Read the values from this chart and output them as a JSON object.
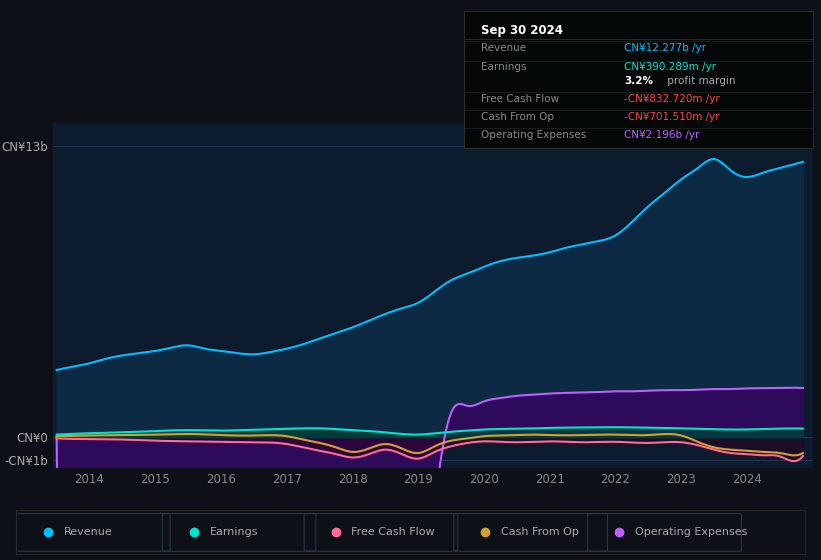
{
  "bg_color": "#0d1117",
  "plot_bg_color": "#0d1b2e",
  "grid_color": "#253550",
  "ylabel_top": "CN¥13b",
  "ylabel_zero": "CN¥0",
  "ylabel_neg": "-CN¥1b",
  "xticks": [
    2014,
    2015,
    2016,
    2017,
    2018,
    2019,
    2020,
    2021,
    2022,
    2023,
    2024
  ],
  "xlim": [
    2013.45,
    2025.0
  ],
  "ylim": [
    -1.35,
    14.0
  ],
  "ytick_positions": [
    13.0,
    0.0,
    -1.0
  ],
  "legend": [
    {
      "label": "Revenue",
      "color": "#00bfff"
    },
    {
      "label": "Earnings",
      "color": "#00e5cc"
    },
    {
      "label": "Free Cash Flow",
      "color": "#ff6b9d"
    },
    {
      "label": "Cash From Op",
      "color": "#d4a030"
    },
    {
      "label": "Operating Expenses",
      "color": "#bf5fff"
    }
  ],
  "info_box": {
    "date": "Sep 30 2024",
    "rows": [
      {
        "label": "Revenue",
        "value": "CN¥12.277b /yr",
        "value_color": "#00bfff"
      },
      {
        "label": "Earnings",
        "value": "CN¥390.289m /yr",
        "value_color": "#00e5cc"
      },
      {
        "label": "",
        "value": "3.2%",
        "value2": " profit margin",
        "value_color": "#ffffff"
      },
      {
        "label": "Free Cash Flow",
        "value": "-CN¥832.720m /yr",
        "value_color": "#ff4444"
      },
      {
        "label": "Cash From Op",
        "value": "-CN¥701.510m /yr",
        "value_color": "#ff4444"
      },
      {
        "label": "Operating Expenses",
        "value": "CN¥2.196b /yr",
        "value_color": "#bf5fff"
      }
    ]
  },
  "revenue_x": [
    2013.5,
    2013.75,
    2014.0,
    2014.25,
    2014.5,
    2014.75,
    2015.0,
    2015.25,
    2015.5,
    2015.75,
    2016.0,
    2016.25,
    2016.5,
    2016.75,
    2017.0,
    2017.25,
    2017.5,
    2017.75,
    2018.0,
    2018.25,
    2018.5,
    2018.75,
    2019.0,
    2019.25,
    2019.5,
    2019.75,
    2020.0,
    2020.25,
    2020.5,
    2020.75,
    2021.0,
    2021.25,
    2021.5,
    2021.75,
    2022.0,
    2022.25,
    2022.5,
    2022.75,
    2023.0,
    2023.25,
    2023.5,
    2023.75,
    2024.0,
    2024.25,
    2024.5,
    2024.75,
    2024.85
  ],
  "revenue_y": [
    3.0,
    3.15,
    3.3,
    3.5,
    3.65,
    3.75,
    3.85,
    4.0,
    4.1,
    3.95,
    3.85,
    3.75,
    3.7,
    3.8,
    3.95,
    4.15,
    4.4,
    4.65,
    4.9,
    5.2,
    5.5,
    5.75,
    6.0,
    6.5,
    7.0,
    7.3,
    7.6,
    7.85,
    8.0,
    8.1,
    8.25,
    8.45,
    8.6,
    8.75,
    9.0,
    9.6,
    10.3,
    10.9,
    11.5,
    12.0,
    12.4,
    11.9,
    11.6,
    11.8,
    12.0,
    12.2,
    12.277
  ],
  "earnings_x": [
    2013.5,
    2014.0,
    2014.5,
    2015.0,
    2015.5,
    2016.0,
    2016.5,
    2017.0,
    2017.5,
    2018.0,
    2018.25,
    2018.5,
    2018.75,
    2019.0,
    2019.25,
    2019.5,
    2019.75,
    2020.0,
    2020.5,
    2021.0,
    2021.5,
    2022.0,
    2022.5,
    2023.0,
    2023.25,
    2023.5,
    2024.0,
    2024.5,
    2024.85
  ],
  "earnings_y": [
    0.12,
    0.18,
    0.22,
    0.28,
    0.32,
    0.3,
    0.34,
    0.38,
    0.4,
    0.32,
    0.28,
    0.22,
    0.15,
    0.12,
    0.18,
    0.25,
    0.3,
    0.35,
    0.38,
    0.42,
    0.44,
    0.45,
    0.43,
    0.4,
    0.38,
    0.36,
    0.35,
    0.39,
    0.39
  ],
  "fcf_x": [
    2013.5,
    2014.0,
    2014.5,
    2015.0,
    2015.5,
    2016.0,
    2016.5,
    2017.0,
    2017.25,
    2017.5,
    2017.75,
    2018.0,
    2018.25,
    2018.5,
    2018.75,
    2019.0,
    2019.25,
    2019.5,
    2019.75,
    2020.0,
    2020.25,
    2020.5,
    2020.75,
    2021.0,
    2021.5,
    2022.0,
    2022.5,
    2023.0,
    2023.25,
    2023.5,
    2023.75,
    2024.0,
    2024.25,
    2024.5,
    2024.75,
    2024.85
  ],
  "fcf_y": [
    -0.05,
    -0.08,
    -0.1,
    -0.15,
    -0.18,
    -0.2,
    -0.22,
    -0.3,
    -0.45,
    -0.6,
    -0.75,
    -0.9,
    -0.75,
    -0.55,
    -0.75,
    -0.95,
    -0.65,
    -0.4,
    -0.25,
    -0.18,
    -0.2,
    -0.22,
    -0.2,
    -0.18,
    -0.22,
    -0.2,
    -0.25,
    -0.22,
    -0.35,
    -0.55,
    -0.7,
    -0.75,
    -0.8,
    -0.85,
    -1.05,
    -0.833
  ],
  "cop_x": [
    2013.5,
    2014.0,
    2014.5,
    2015.0,
    2015.5,
    2016.0,
    2016.5,
    2017.0,
    2017.25,
    2017.5,
    2017.75,
    2018.0,
    2018.25,
    2018.5,
    2018.75,
    2019.0,
    2019.25,
    2019.5,
    2019.75,
    2020.0,
    2020.25,
    2020.5,
    2020.75,
    2021.0,
    2021.5,
    2022.0,
    2022.5,
    2023.0,
    2023.25,
    2023.5,
    2023.75,
    2024.0,
    2024.25,
    2024.5,
    2024.75,
    2024.85
  ],
  "cop_y": [
    0.05,
    0.08,
    0.1,
    0.12,
    0.15,
    0.1,
    0.08,
    0.05,
    -0.1,
    -0.25,
    -0.45,
    -0.65,
    -0.5,
    -0.3,
    -0.5,
    -0.7,
    -0.4,
    -0.15,
    -0.05,
    0.05,
    0.08,
    0.1,
    0.12,
    0.1,
    0.1,
    0.12,
    0.1,
    0.08,
    -0.2,
    -0.45,
    -0.55,
    -0.6,
    -0.65,
    -0.7,
    -0.8,
    -0.702
  ],
  "opex_x": [
    2013.5,
    2019.4,
    2019.5,
    2019.75,
    2020.0,
    2020.25,
    2020.5,
    2020.75,
    2021.0,
    2021.25,
    2021.5,
    2021.75,
    2022.0,
    2022.25,
    2022.5,
    2022.75,
    2023.0,
    2023.25,
    2023.5,
    2023.75,
    2024.0,
    2024.25,
    2024.5,
    2024.75,
    2024.85
  ],
  "opex_y": [
    0.0,
    0.0,
    1.1,
    1.4,
    1.6,
    1.75,
    1.85,
    1.9,
    1.95,
    1.98,
    2.0,
    2.02,
    2.05,
    2.05,
    2.08,
    2.1,
    2.1,
    2.12,
    2.15,
    2.15,
    2.18,
    2.19,
    2.2,
    2.21,
    2.196
  ]
}
